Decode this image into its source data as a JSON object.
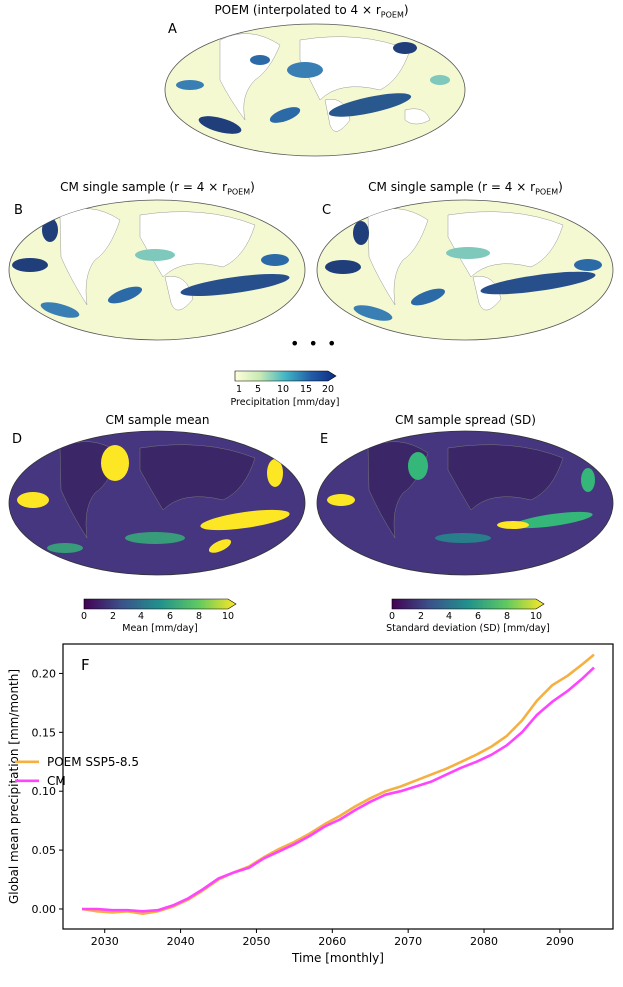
{
  "panels": {
    "a": {
      "letter": "A",
      "title": "POEM (interpolated to 4 × r",
      "title_sub": "POEM",
      "title_close": ")"
    },
    "b": {
      "letter": "B",
      "title": "CM single sample (r = 4 × r",
      "title_sub": "POEM",
      "title_close": ")"
    },
    "c": {
      "letter": "C",
      "title": "CM single sample (r = 4 × r",
      "title_sub": "POEM",
      "title_close": ")"
    },
    "d": {
      "letter": "D",
      "title": "CM sample mean"
    },
    "e": {
      "letter": "E",
      "title": "CM sample spread (SD)"
    },
    "f": {
      "letter": "F"
    }
  },
  "ellipsis": "• • •",
  "colorbars": {
    "precip": {
      "label": "Precipitation [mm/day]",
      "ticks": [
        "1",
        "5",
        "10",
        "15",
        "20"
      ],
      "tick_values": [
        1,
        5,
        10,
        15,
        20
      ],
      "min": 0,
      "max": 20,
      "colormap": "YlGnBu"
    },
    "mean": {
      "label": "Mean [mm/day]",
      "ticks": [
        "0",
        "2",
        "4",
        "6",
        "8",
        "10"
      ],
      "tick_values": [
        0,
        2,
        4,
        6,
        8,
        10
      ],
      "min": 0,
      "max": 10,
      "colormap": "viridis"
    },
    "sd": {
      "label": "Standard deviation (SD) [mm/day]",
      "ticks": [
        "0",
        "2",
        "4",
        "6",
        "8",
        "10"
      ],
      "tick_values": [
        0,
        2,
        4,
        6,
        8,
        10
      ],
      "min": 0,
      "max": 10,
      "colormap": "viridis"
    }
  },
  "colors": {
    "poem": "#f5b041",
    "cm": "#ff44ff",
    "ocean_dark": "#453a7e",
    "land_dark": "#45286f",
    "highlight": "#fde725"
  },
  "chart_data": {
    "type": "line",
    "xlabel": "Time [monthly]",
    "ylabel": "Global mean precipitation [mm/month]",
    "xlim": [
      2024.5,
      2097
    ],
    "ylim": [
      -0.017,
      0.225
    ],
    "xticks": [
      2030,
      2040,
      2050,
      2060,
      2070,
      2080,
      2090
    ],
    "yticks": [
      0.0,
      0.05,
      0.1,
      0.15,
      0.2
    ],
    "ytick_labels": [
      "0.00",
      "0.05",
      "0.10",
      "0.15",
      "0.20"
    ],
    "legend_position": "center-left",
    "grid": false,
    "series": [
      {
        "name": "POEM SSP5-8.5",
        "color": "#f5b041",
        "x": [
          2027,
          2029,
          2031,
          2033,
          2035,
          2037,
          2039,
          2041,
          2043,
          2045,
          2047,
          2049,
          2051,
          2053,
          2055,
          2057,
          2059,
          2061,
          2063,
          2065,
          2067,
          2069,
          2071,
          2073,
          2075,
          2077,
          2079,
          2081,
          2083,
          2085,
          2087,
          2089,
          2091,
          2093,
          2094.5
        ],
        "y": [
          0.0,
          -0.002,
          -0.003,
          -0.002,
          -0.004,
          -0.002,
          0.002,
          0.008,
          0.016,
          0.025,
          0.031,
          0.036,
          0.044,
          0.051,
          0.057,
          0.064,
          0.072,
          0.079,
          0.087,
          0.094,
          0.1,
          0.104,
          0.109,
          0.114,
          0.119,
          0.125,
          0.131,
          0.138,
          0.147,
          0.16,
          0.177,
          0.19,
          0.198,
          0.208,
          0.216
        ]
      },
      {
        "name": "CM",
        "color": "#ff44ff",
        "x": [
          2027,
          2029,
          2031,
          2033,
          2035,
          2037,
          2039,
          2041,
          2043,
          2045,
          2047,
          2049,
          2051,
          2053,
          2055,
          2057,
          2059,
          2061,
          2063,
          2065,
          2067,
          2069,
          2071,
          2073,
          2075,
          2077,
          2079,
          2081,
          2083,
          2085,
          2087,
          2089,
          2091,
          2093,
          2094.5
        ],
        "y": [
          0.0,
          0.0,
          -0.001,
          -0.001,
          -0.002,
          -0.001,
          0.003,
          0.009,
          0.017,
          0.026,
          0.031,
          0.035,
          0.043,
          0.049,
          0.055,
          0.062,
          0.07,
          0.076,
          0.084,
          0.091,
          0.097,
          0.1,
          0.104,
          0.108,
          0.114,
          0.12,
          0.125,
          0.131,
          0.139,
          0.15,
          0.165,
          0.176,
          0.185,
          0.196,
          0.205
        ]
      }
    ]
  }
}
